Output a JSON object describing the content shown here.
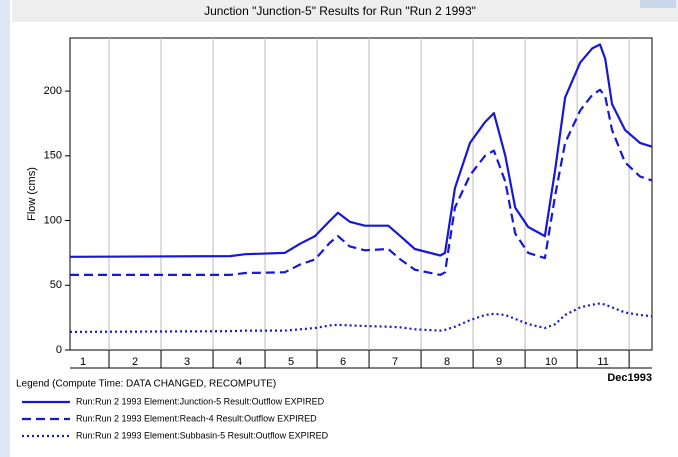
{
  "chart_data": {
    "type": "line",
    "title": "Junction \"Junction-5\" Results for Run \"Run 2 1993\"",
    "ylabel": "Flow (cms)",
    "x_unit_label": "Dec1993",
    "xlim": [
      1.25,
      12.44
    ],
    "xticks": [
      2,
      3,
      4,
      5,
      6,
      7,
      8,
      9,
      10,
      11,
      12
    ],
    "day_labels": [
      1,
      2,
      3,
      4,
      5,
      6,
      7,
      8,
      9,
      10,
      11
    ],
    "ylim": [
      0,
      241
    ],
    "yticks": [
      0,
      50,
      100,
      150,
      200
    ],
    "grid": "x",
    "legend_title": "Legend (Compute Time: DATA CHANGED, RECOMPUTE)",
    "x": [
      1.25,
      4.33,
      4.62,
      5.38,
      5.67,
      5.96,
      6.25,
      6.4,
      6.63,
      6.92,
      7.37,
      7.6,
      7.88,
      8.37,
      8.46,
      8.65,
      8.94,
      9.23,
      9.4,
      9.62,
      9.81,
      10.06,
      10.38,
      10.58,
      10.77,
      11.06,
      11.29,
      11.44,
      11.54,
      11.67,
      11.92,
      12.21,
      12.44
    ],
    "series": [
      {
        "name": "Run:Run 2 1993 Element:Junction-5 Result:Outflow EXPIRED",
        "color": "#1717d8",
        "dash": "solid",
        "values": [
          72,
          72.5,
          74,
          75,
          82,
          88,
          100,
          106,
          99,
          96,
          96,
          88,
          78,
          73,
          75,
          125,
          160,
          176,
          183,
          150,
          110,
          95,
          88,
          140,
          195,
          222,
          233,
          236,
          225,
          190,
          170,
          160,
          157
        ]
      },
      {
        "name": "Run:Run 2 1993 Element:Reach-4 Result:Outflow EXPIRED",
        "color": "#1717d8",
        "dash": "dashed",
        "values": [
          58,
          58,
          59.5,
          60,
          66,
          70,
          83,
          88,
          80,
          77,
          78,
          70,
          62,
          58,
          60,
          110,
          135,
          150,
          154,
          130,
          90,
          75,
          71,
          120,
          160,
          185,
          197,
          201,
          196,
          170,
          145,
          134,
          131
        ]
      },
      {
        "name": "Run:Run 2 1993 Element:Subbasin-5 Result:Outflow EXPIRED",
        "color": "#1717d8",
        "dash": "dotted",
        "values": [
          14,
          14.5,
          15,
          15,
          16,
          17,
          19,
          19.5,
          19,
          18.5,
          18,
          17.5,
          16,
          15,
          15.5,
          18,
          23,
          27,
          28,
          27,
          24,
          20,
          17,
          20,
          27,
          33,
          35,
          36,
          35,
          33,
          29,
          27,
          26
        ]
      }
    ]
  }
}
